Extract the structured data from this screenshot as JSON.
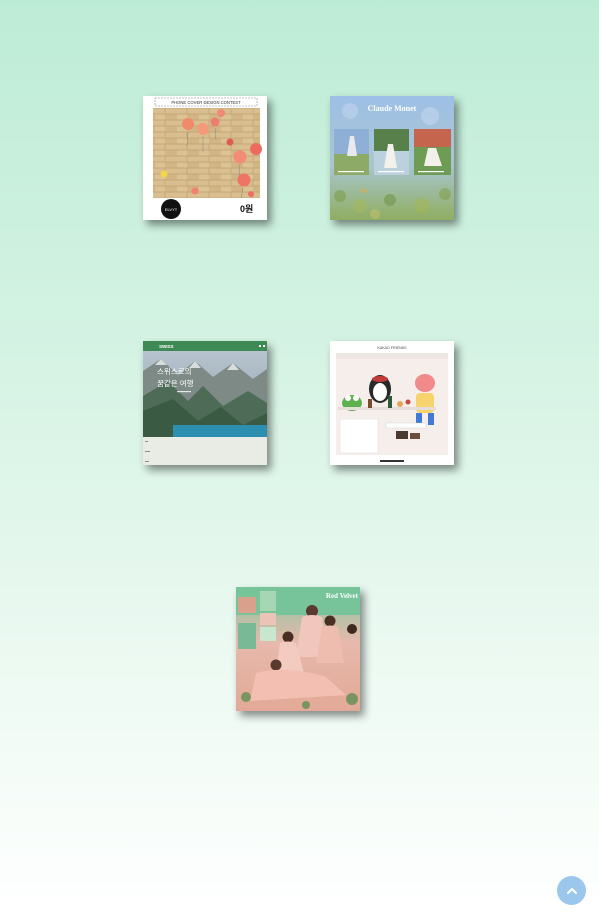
{
  "projects": [
    {
      "id": "balloon",
      "banner": "PHONE COVER DESIGN CONTEST",
      "logo": "ELVYT",
      "count": "0원"
    },
    {
      "id": "monet",
      "title": "Claude Monet"
    },
    {
      "id": "swiss",
      "brand": "SWISS",
      "headline1": "스위스로의",
      "headline2": "꿈같은 여행"
    },
    {
      "id": "kakao",
      "brand": "KAKAO FRIENDS"
    },
    {
      "id": "redvelvet",
      "title": "Red Velvet"
    }
  ],
  "colors": {
    "accent": "#9bc7ec",
    "swiss_green": "#3d8a55"
  },
  "icons": {
    "top_button": "chevron-up-icon"
  }
}
